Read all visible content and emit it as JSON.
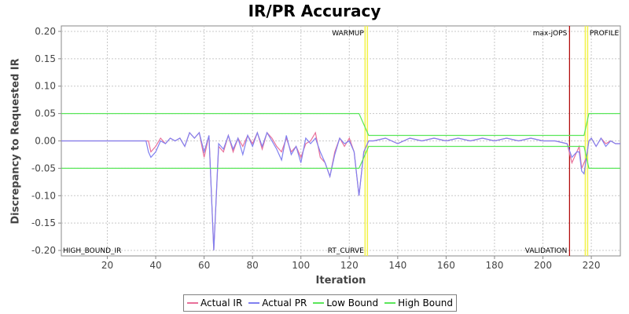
{
  "chart_data": {
    "type": "line",
    "title": "IR/PR Accuracy",
    "xlabel": "Iteration",
    "ylabel": "Discrepancy to Requested IR",
    "xlim": [
      1,
      232
    ],
    "ylim": [
      -0.21,
      0.21
    ],
    "x_ticks": [
      20,
      40,
      60,
      80,
      100,
      120,
      140,
      160,
      180,
      200,
      220
    ],
    "y_ticks": [
      0.2,
      0.15,
      0.1,
      0.05,
      0.0,
      -0.05,
      -0.1,
      -0.15,
      -0.2
    ],
    "y_tick_labels": [
      "0.20",
      "0.15",
      "0.10",
      "0.05",
      "0.00",
      "-0.05",
      "-0.10",
      "-0.15",
      "-0.20"
    ],
    "grid": true,
    "legend_position": "bottom",
    "series": [
      {
        "name": "Actual IR",
        "color": "#e8709a",
        "points": [
          [
            1,
            0
          ],
          [
            36,
            0
          ],
          [
            37,
            0
          ],
          [
            38,
            -0.02
          ],
          [
            40,
            -0.01
          ],
          [
            42,
            0.005
          ],
          [
            44,
            -0.005
          ],
          [
            46,
            0.005
          ],
          [
            48,
            0
          ],
          [
            50,
            0.005
          ],
          [
            52,
            -0.01
          ],
          [
            54,
            0.015
          ],
          [
            56,
            0.005
          ],
          [
            58,
            0.015
          ],
          [
            60,
            -0.03
          ],
          [
            62,
            0.01
          ],
          [
            64,
            -0.2
          ],
          [
            66,
            -0.01
          ],
          [
            68,
            -0.02
          ],
          [
            70,
            0.01
          ],
          [
            72,
            -0.02
          ],
          [
            74,
            0.005
          ],
          [
            76,
            -0.01
          ],
          [
            78,
            0.01
          ],
          [
            80,
            -0.005
          ],
          [
            82,
            0.015
          ],
          [
            84,
            -0.015
          ],
          [
            86,
            0.015
          ],
          [
            88,
            0.005
          ],
          [
            90,
            -0.01
          ],
          [
            92,
            -0.02
          ],
          [
            94,
            0.005
          ],
          [
            96,
            -0.02
          ],
          [
            98,
            -0.01
          ],
          [
            100,
            -0.03
          ],
          [
            102,
            -0.005
          ],
          [
            104,
            0.0
          ],
          [
            106,
            0.015
          ],
          [
            108,
            -0.03
          ],
          [
            110,
            -0.04
          ],
          [
            112,
            -0.065
          ],
          [
            114,
            -0.02
          ],
          [
            116,
            0.005
          ],
          [
            118,
            -0.01
          ],
          [
            120,
            0.005
          ],
          [
            122,
            -0.02
          ],
          [
            124,
            -0.1
          ],
          [
            126,
            -0.02
          ],
          [
            128,
            0.0
          ],
          [
            130,
            0.0
          ],
          [
            135,
            0.005
          ],
          [
            140,
            -0.005
          ],
          [
            145,
            0.005
          ],
          [
            150,
            0.0
          ],
          [
            155,
            0.005
          ],
          [
            160,
            0.0
          ],
          [
            165,
            0.005
          ],
          [
            170,
            0.0
          ],
          [
            175,
            0.005
          ],
          [
            180,
            0.0
          ],
          [
            185,
            0.005
          ],
          [
            190,
            0.0
          ],
          [
            195,
            0.005
          ],
          [
            200,
            0.0
          ],
          [
            205,
            0.0
          ],
          [
            210,
            -0.005
          ],
          [
            212,
            -0.04
          ],
          [
            214,
            -0.02
          ],
          [
            215,
            -0.01
          ],
          [
            216,
            -0.05
          ],
          [
            218,
            -0.03
          ],
          [
            219,
            0.0
          ],
          [
            220,
            0.005
          ],
          [
            222,
            -0.01
          ],
          [
            224,
            0.005
          ],
          [
            226,
            -0.005
          ],
          [
            228,
            0.0
          ],
          [
            230,
            -0.005
          ],
          [
            232,
            -0.005
          ]
        ]
      },
      {
        "name": "Actual PR",
        "color": "#8080f0",
        "points": [
          [
            1,
            0
          ],
          [
            36,
            0
          ],
          [
            37,
            -0.02
          ],
          [
            38,
            -0.03
          ],
          [
            40,
            -0.02
          ],
          [
            42,
            0.0
          ],
          [
            44,
            -0.005
          ],
          [
            46,
            0.005
          ],
          [
            48,
            0
          ],
          [
            50,
            0.005
          ],
          [
            52,
            -0.01
          ],
          [
            54,
            0.015
          ],
          [
            56,
            0.005
          ],
          [
            58,
            0.015
          ],
          [
            60,
            -0.02
          ],
          [
            62,
            0.01
          ],
          [
            64,
            -0.2
          ],
          [
            66,
            -0.005
          ],
          [
            68,
            -0.015
          ],
          [
            70,
            0.01
          ],
          [
            72,
            -0.015
          ],
          [
            74,
            0.005
          ],
          [
            76,
            -0.025
          ],
          [
            78,
            0.01
          ],
          [
            80,
            -0.01
          ],
          [
            82,
            0.015
          ],
          [
            84,
            -0.01
          ],
          [
            86,
            0.015
          ],
          [
            88,
            0.0
          ],
          [
            90,
            -0.015
          ],
          [
            92,
            -0.035
          ],
          [
            94,
            0.01
          ],
          [
            96,
            -0.025
          ],
          [
            98,
            -0.01
          ],
          [
            100,
            -0.04
          ],
          [
            102,
            0.005
          ],
          [
            104,
            -0.005
          ],
          [
            106,
            0.005
          ],
          [
            108,
            -0.02
          ],
          [
            110,
            -0.04
          ],
          [
            112,
            -0.065
          ],
          [
            114,
            -0.025
          ],
          [
            116,
            0.005
          ],
          [
            118,
            -0.005
          ],
          [
            120,
            0.0
          ],
          [
            122,
            -0.02
          ],
          [
            124,
            -0.1
          ],
          [
            126,
            -0.02
          ],
          [
            128,
            0.0
          ],
          [
            130,
            0.0
          ],
          [
            135,
            0.005
          ],
          [
            140,
            -0.005
          ],
          [
            145,
            0.005
          ],
          [
            150,
            0.0
          ],
          [
            155,
            0.005
          ],
          [
            160,
            0.0
          ],
          [
            165,
            0.005
          ],
          [
            170,
            0.0
          ],
          [
            175,
            0.005
          ],
          [
            180,
            0.0
          ],
          [
            185,
            0.005
          ],
          [
            190,
            0.0
          ],
          [
            195,
            0.005
          ],
          [
            200,
            0.0
          ],
          [
            205,
            0.0
          ],
          [
            210,
            -0.005
          ],
          [
            212,
            -0.03
          ],
          [
            214,
            -0.02
          ],
          [
            215,
            -0.02
          ],
          [
            216,
            -0.055
          ],
          [
            217,
            -0.06
          ],
          [
            218,
            -0.03
          ],
          [
            219,
            0.0
          ],
          [
            220,
            0.005
          ],
          [
            222,
            -0.01
          ],
          [
            224,
            0.005
          ],
          [
            226,
            -0.01
          ],
          [
            228,
            0.0
          ],
          [
            230,
            -0.005
          ],
          [
            232,
            -0.005
          ]
        ]
      },
      {
        "name": "Low Bound",
        "color": "#5ae65a",
        "points": [
          [
            1,
            -0.05
          ],
          [
            124,
            -0.05
          ],
          [
            128,
            -0.01
          ],
          [
            217,
            -0.01
          ],
          [
            219,
            -0.05
          ],
          [
            232,
            -0.05
          ]
        ]
      },
      {
        "name": "High Bound",
        "color": "#5ae65a",
        "points": [
          [
            1,
            0.05
          ],
          [
            124,
            0.05
          ],
          [
            128,
            0.01
          ],
          [
            217,
            0.01
          ],
          [
            219,
            0.05
          ],
          [
            232,
            0.05
          ]
        ]
      }
    ],
    "markers": [
      {
        "x": 127,
        "color": "#f2f24a",
        "top_label": "WARMUP",
        "bottom_label": "RT_CURVE"
      },
      {
        "x": 211,
        "color": "#b00000",
        "top_label": "max-jOPS",
        "bottom_label": "VALIDATION"
      },
      {
        "x": 218,
        "color": "#f2f24a",
        "top_label": "PROFILE",
        "bottom_label": ""
      }
    ],
    "corner_label": "HIGH_BOUND_IR"
  }
}
